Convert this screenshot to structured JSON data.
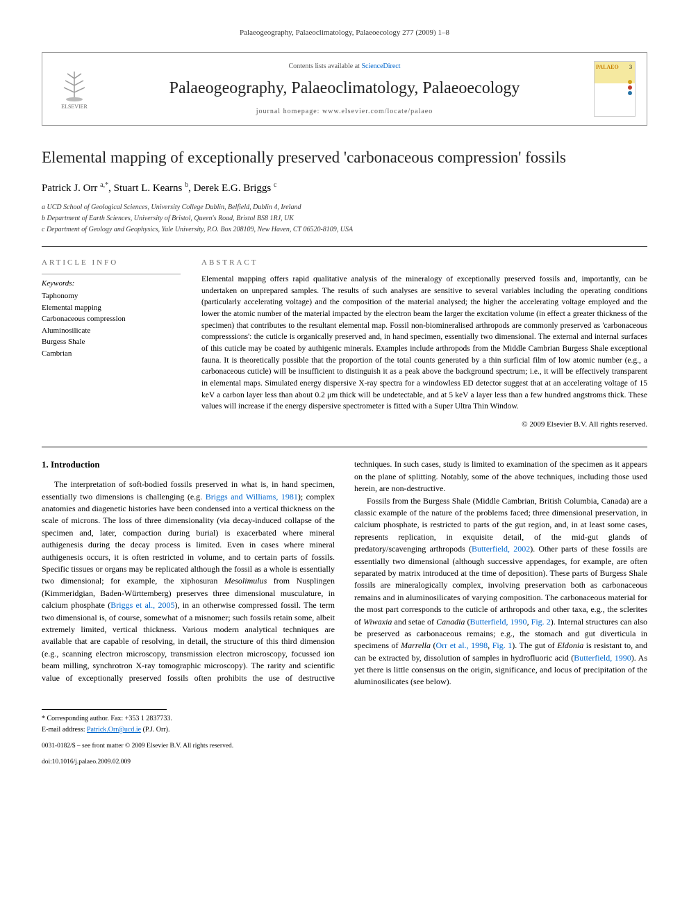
{
  "page_header": "Palaeogeography, Palaeoclimatology, Palaeoecology 277 (2009) 1–8",
  "journal_header": {
    "publisher_name": "ELSEVIER",
    "contents_prefix": "Contents lists available at ",
    "contents_link": "ScienceDirect",
    "journal_name": "Palaeogeography, Palaeoclimatology, Palaeoecology",
    "homepage_label": "journal homepage: ",
    "homepage_url": "www.elsevier.com/locate/palaeo",
    "cover_label": "PALAEO",
    "cover_issue": "3",
    "cover_dot_colors": [
      "#d4a017",
      "#c0392b",
      "#2874a6"
    ]
  },
  "article": {
    "title": "Elemental mapping of exceptionally preserved 'carbonaceous compression' fossils",
    "authors_html": "Patrick J. Orr <sup>a,*</sup>, Stuart L. Kearns <sup>b</sup>, Derek E.G. Briggs <sup>c</sup>",
    "affiliations": [
      "a UCD School of Geological Sciences, University College Dublin, Belfield, Dublin 4, Ireland",
      "b Department of Earth Sciences, University of Bristol, Queen's Road, Bristol BS8 1RJ, UK",
      "c Department of Geology and Geophysics, Yale University, P.O. Box 208109, New Haven, CT 06520-8109, USA"
    ]
  },
  "article_info": {
    "heading": "ARTICLE INFO",
    "keywords_label": "Keywords:",
    "keywords": [
      "Taphonomy",
      "Elemental mapping",
      "Carbonaceous compression",
      "Aluminosilicate",
      "Burgess Shale",
      "Cambrian"
    ]
  },
  "abstract": {
    "heading": "ABSTRACT",
    "text": "Elemental mapping offers rapid qualitative analysis of the mineralogy of exceptionally preserved fossils and, importantly, can be undertaken on unprepared samples. The results of such analyses are sensitive to several variables including the operating conditions (particularly accelerating voltage) and the composition of the material analysed; the higher the accelerating voltage employed and the lower the atomic number of the material impacted by the electron beam the larger the excitation volume (in effect a greater thickness of the specimen) that contributes to the resultant elemental map. Fossil non-biomineralised arthropods are commonly preserved as 'carbonaceous compresssions': the cuticle is organically preserved and, in hand specimen, essentially two dimensional. The external and internal surfaces of this cuticle may be coated by authigenic minerals. Examples include arthropods from the Middle Cambrian Burgess Shale exceptional fauna. It is theoretically possible that the proportion of the total counts generated by a thin surficial film of low atomic number (e.g., a carbonaceous cuticle) will be insufficient to distinguish it as a peak above the background spectrum; i.e., it will be effectively transparent in elemental maps. Simulated energy dispersive X-ray spectra for a windowless ED detector suggest that at an accelerating voltage of 15 keV a carbon layer less than about 0.2 μm thick will be undetectable, and at 5 keV a layer less than a few hundred angstroms thick. These values will increase if the energy dispersive spectrometer is fitted with a Super Ultra Thin Window.",
    "copyright": "© 2009 Elsevier B.V. All rights reserved."
  },
  "body": {
    "section_heading": "1. Introduction",
    "para1_pre": "The interpretation of soft-bodied fossils preserved in what is, in hand specimen, essentially two dimensions is challenging (e.g. ",
    "para1_cite1": "Briggs and Williams, 1981",
    "para1_mid1": "); complex anatomies and diagenetic histories have been condensed into a vertical thickness on the scale of microns. The loss of three dimensionality (via decay-induced collapse of the specimen and, later, compaction during burial) is exacerbated where mineral authigenesis during the decay process is limited. Even in cases where mineral authigenesis occurs, it is often restricted in volume, and to certain parts of fossils. Specific tissues or organs may be replicated although the fossil as a whole is essentially two dimensional; for example, the xiphosuran ",
    "para1_ital1": "Mesolimulus",
    "para1_mid2": " from Nusplingen (Kimmeridgian, Baden-Württemberg) preserves three dimensional musculature, in calcium phosphate (",
    "para1_cite2": "Briggs et al., 2005",
    "para1_mid3": "), in an otherwise compressed fossil. The term two dimensional is, of course, somewhat of a misnomer; such fossils retain some, albeit extremely limited, vertical thickness. Various modern analytical techniques are available that are capable of resolving, in detail, the structure of this third dimension (e.g., scanning electron microscopy, transmission electron microscopy, focussed ion beam milling, synchrotron X-ray tomographic micro",
    "para1_col2_start": "scopy). The rarity and scientific value of exceptionally preserved fossils often prohibits the use of destructive techniques. In such cases, study is limited to examination of the specimen as it appears on the plane of splitting. Notably, some of the above techniques, including those used herein, are non-destructive.",
    "para2_pre": "Fossils from the Burgess Shale (Middle Cambrian, British Columbia, Canada) are a classic example of the nature of the problems faced; three dimensional preservation, in calcium phosphate, is restricted to parts of the gut region, and, in at least some cases, represents replication, in exquisite detail, of the mid-gut glands of predatory/scavenging arthropods (",
    "para2_cite1": "Butterfield, 2002",
    "para2_mid1": "). Other parts of these fossils are essentially two dimensional (although successive appendages, for example, are often separated by matrix introduced at the time of deposition). These parts of Burgess Shale fossils are mineralogically complex, involving preservation both as carbonaceous remains and in aluminosilicates of varying composition. The carbonaceous material for the most part corresponds to the cuticle of arthropods and other taxa, e.g., the sclerites of ",
    "para2_ital1": "Wiwaxia",
    "para2_mid2": " and setae of ",
    "para2_ital2": "Canadia",
    "para2_mid3": " (",
    "para2_cite2": "Butterfield, 1990",
    "para2_mid4": ", ",
    "para2_cite3": "Fig. 2",
    "para2_mid5": "). Internal structures can also be preserved as carbonaceous remains; e.g., the stomach and gut diverticula in specimens of ",
    "para2_ital3": "Marrella",
    "para2_mid6": " (",
    "para2_cite4": "Orr et al., 1998",
    "para2_mid7": ", ",
    "para2_cite5": "Fig. 1",
    "para2_mid8": "). The gut of ",
    "para2_ital4": "Eldonia",
    "para2_mid9": " is resistant to, and can be extracted by, dissolution of samples in hydrofluoric acid (",
    "para2_cite6": "Butterfield, 1990",
    "para2_end": "). As yet there is little consensus on the origin, significance, and locus of precipitation of the aluminosilicates (see below)."
  },
  "footer": {
    "corresponding": "* Corresponding author. Fax: +353 1 2837733.",
    "email_label": "E-mail address: ",
    "email": "Patrick.Orr@ucd.ie",
    "email_suffix": " (P.J. Orr).",
    "issn_line": "0031-0182/$ – see front matter © 2009 Elsevier B.V. All rights reserved.",
    "doi": "doi:10.1016/j.palaeo.2009.02.009"
  },
  "colors": {
    "link": "#0066cc",
    "text": "#000000",
    "muted": "#666666",
    "border": "#999999"
  }
}
